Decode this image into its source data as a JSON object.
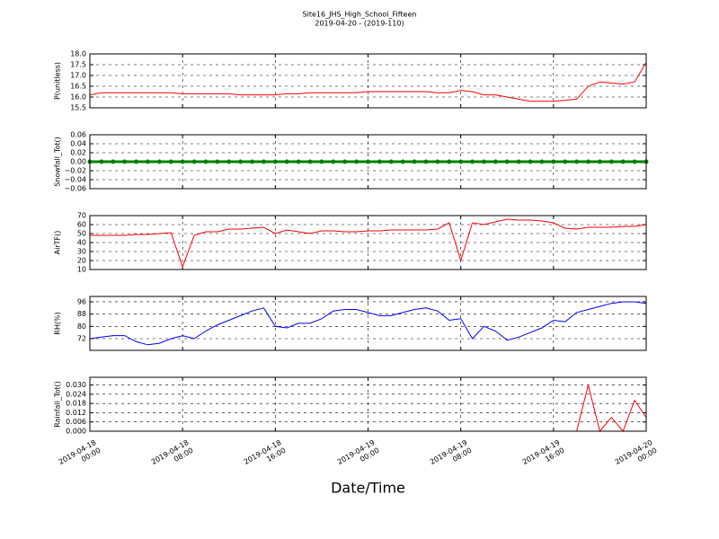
{
  "title": "Site16_JHS_High_School_Fifteen",
  "subtitle": "2019-04-20 - (2019-110)",
  "chart_data": [
    {
      "type": "line",
      "ylabel": "P(unitless)",
      "xlim": [
        "2019-04-18 00:00",
        "2019-04-20 00:00"
      ],
      "xticks": [
        "2019-04-18 00:00",
        "2019-04-18 08:00",
        "2019-04-18 16:00",
        "2019-04-19 00:00",
        "2019-04-19 08:00",
        "2019-04-19 16:00",
        "2019-04-20 00:00"
      ],
      "ylim": [
        15.5,
        18.0
      ],
      "yticks": [
        {
          "value": 15.5,
          "label": "15.5"
        },
        {
          "value": 16.0,
          "label": "16.0"
        },
        {
          "value": 16.5,
          "label": "16.5"
        },
        {
          "value": 17.0,
          "label": "17.0"
        },
        {
          "value": 17.5,
          "label": "17.5"
        },
        {
          "value": 18.0,
          "label": "18.0"
        }
      ],
      "grid": true,
      "color": "#ff0000",
      "marker": false,
      "x": [
        "2019-04-18 00:00",
        "2019-04-18 01:00",
        "2019-04-18 02:00",
        "2019-04-18 03:00",
        "2019-04-18 04:00",
        "2019-04-18 05:00",
        "2019-04-18 06:00",
        "2019-04-18 07:00",
        "2019-04-18 08:00",
        "2019-04-18 09:00",
        "2019-04-18 10:00",
        "2019-04-18 11:00",
        "2019-04-18 12:00",
        "2019-04-18 13:00",
        "2019-04-18 14:00",
        "2019-04-18 15:00",
        "2019-04-18 16:00",
        "2019-04-18 17:00",
        "2019-04-18 18:00",
        "2019-04-18 19:00",
        "2019-04-18 20:00",
        "2019-04-18 21:00",
        "2019-04-18 22:00",
        "2019-04-18 23:00",
        "2019-04-19 00:00",
        "2019-04-19 01:00",
        "2019-04-19 02:00",
        "2019-04-19 03:00",
        "2019-04-19 04:00",
        "2019-04-19 05:00",
        "2019-04-19 06:00",
        "2019-04-19 07:00",
        "2019-04-19 08:00",
        "2019-04-19 09:00",
        "2019-04-19 10:00",
        "2019-04-19 11:00",
        "2019-04-19 12:00",
        "2019-04-19 13:00",
        "2019-04-19 14:00",
        "2019-04-19 15:00",
        "2019-04-19 16:00",
        "2019-04-19 17:00",
        "2019-04-19 18:00",
        "2019-04-19 19:00",
        "2019-04-19 20:00",
        "2019-04-19 21:00",
        "2019-04-19 22:00",
        "2019-04-19 23:00",
        "2019-04-20 00:00"
      ],
      "values": [
        16.1,
        16.2,
        16.2,
        16.2,
        16.2,
        16.2,
        16.2,
        16.2,
        16.15,
        16.15,
        16.15,
        16.15,
        16.15,
        16.1,
        16.1,
        16.1,
        16.1,
        16.15,
        16.15,
        16.2,
        16.2,
        16.2,
        16.2,
        16.2,
        16.25,
        16.25,
        16.25,
        16.25,
        16.25,
        16.25,
        16.2,
        16.2,
        16.3,
        16.25,
        16.1,
        16.1,
        16.0,
        15.9,
        15.8,
        15.8,
        15.8,
        15.85,
        15.9,
        16.5,
        16.7,
        16.65,
        16.6,
        16.7,
        17.6
      ]
    },
    {
      "type": "line",
      "ylabel": "Snowfall_Tot()",
      "xlim": [
        "2019-04-18 00:00",
        "2019-04-20 00:00"
      ],
      "xticks": [
        "2019-04-18 00:00",
        "2019-04-18 08:00",
        "2019-04-18 16:00",
        "2019-04-19 00:00",
        "2019-04-19 08:00",
        "2019-04-19 16:00",
        "2019-04-20 00:00"
      ],
      "ylim": [
        -0.06,
        0.06
      ],
      "yticks": [
        {
          "value": -0.06,
          "label": "−0.06"
        },
        {
          "value": -0.04,
          "label": "−0.04"
        },
        {
          "value": -0.02,
          "label": "−0.02"
        },
        {
          "value": 0,
          "label": "0.00"
        },
        {
          "value": 0.02,
          "label": "0.02"
        },
        {
          "value": 0.04,
          "label": "0.04"
        },
        {
          "value": 0.06,
          "label": "0.06"
        }
      ],
      "grid": true,
      "color": "#008000",
      "marker": true,
      "x": [
        "2019-04-18 00:00",
        "2019-04-18 01:00",
        "2019-04-18 02:00",
        "2019-04-18 03:00",
        "2019-04-18 04:00",
        "2019-04-18 05:00",
        "2019-04-18 06:00",
        "2019-04-18 07:00",
        "2019-04-18 08:00",
        "2019-04-18 09:00",
        "2019-04-18 10:00",
        "2019-04-18 11:00",
        "2019-04-18 12:00",
        "2019-04-18 13:00",
        "2019-04-18 14:00",
        "2019-04-18 15:00",
        "2019-04-18 16:00",
        "2019-04-18 17:00",
        "2019-04-18 18:00",
        "2019-04-18 19:00",
        "2019-04-18 20:00",
        "2019-04-18 21:00",
        "2019-04-18 22:00",
        "2019-04-18 23:00",
        "2019-04-19 00:00",
        "2019-04-19 01:00",
        "2019-04-19 02:00",
        "2019-04-19 03:00",
        "2019-04-19 04:00",
        "2019-04-19 05:00",
        "2019-04-19 06:00",
        "2019-04-19 07:00",
        "2019-04-19 08:00",
        "2019-04-19 09:00",
        "2019-04-19 10:00",
        "2019-04-19 11:00",
        "2019-04-19 12:00",
        "2019-04-19 13:00",
        "2019-04-19 14:00",
        "2019-04-19 15:00",
        "2019-04-19 16:00",
        "2019-04-19 17:00",
        "2019-04-19 18:00",
        "2019-04-19 19:00",
        "2019-04-19 20:00",
        "2019-04-19 21:00",
        "2019-04-19 22:00",
        "2019-04-19 23:00",
        "2019-04-20 00:00"
      ],
      "values": [
        0,
        0,
        0,
        0,
        0,
        0,
        0,
        0,
        0,
        0,
        0,
        0,
        0,
        0,
        0,
        0,
        0,
        0,
        0,
        0,
        0,
        0,
        0,
        0,
        0,
        0,
        0,
        0,
        0,
        0,
        0,
        0,
        0,
        0,
        0,
        0,
        0,
        0,
        0,
        0,
        0,
        0,
        0,
        0,
        0,
        0,
        0,
        0,
        0
      ]
    },
    {
      "type": "line",
      "ylabel": "AirTF()",
      "xlim": [
        "2019-04-18 00:00",
        "2019-04-20 00:00"
      ],
      "xticks": [
        "2019-04-18 00:00",
        "2019-04-18 08:00",
        "2019-04-18 16:00",
        "2019-04-19 00:00",
        "2019-04-19 08:00",
        "2019-04-19 16:00",
        "2019-04-20 00:00"
      ],
      "ylim": [
        10,
        70
      ],
      "yticks": [
        10,
        20,
        30,
        40,
        50,
        60,
        70
      ],
      "grid": true,
      "color": "#ff0000",
      "marker": false,
      "x": [
        "2019-04-18 00:00",
        "2019-04-18 01:00",
        "2019-04-18 02:00",
        "2019-04-18 03:00",
        "2019-04-18 04:00",
        "2019-04-18 05:00",
        "2019-04-18 06:00",
        "2019-04-18 07:00",
        "2019-04-18 08:00",
        "2019-04-18 09:00",
        "2019-04-18 10:00",
        "2019-04-18 11:00",
        "2019-04-18 12:00",
        "2019-04-18 13:00",
        "2019-04-18 14:00",
        "2019-04-18 15:00",
        "2019-04-18 16:00",
        "2019-04-18 17:00",
        "2019-04-18 18:00",
        "2019-04-18 19:00",
        "2019-04-18 20:00",
        "2019-04-18 21:00",
        "2019-04-18 22:00",
        "2019-04-18 23:00",
        "2019-04-19 00:00",
        "2019-04-19 01:00",
        "2019-04-19 02:00",
        "2019-04-19 03:00",
        "2019-04-19 04:00",
        "2019-04-19 05:00",
        "2019-04-19 06:00",
        "2019-04-19 07:00",
        "2019-04-19 08:00",
        "2019-04-19 09:00",
        "2019-04-19 10:00",
        "2019-04-19 11:00",
        "2019-04-19 12:00",
        "2019-04-19 13:00",
        "2019-04-19 14:00",
        "2019-04-19 15:00",
        "2019-04-19 16:00",
        "2019-04-19 17:00",
        "2019-04-19 18:00",
        "2019-04-19 19:00",
        "2019-04-19 20:00",
        "2019-04-19 21:00",
        "2019-04-19 22:00",
        "2019-04-19 23:00",
        "2019-04-20 00:00"
      ],
      "values": [
        48,
        48,
        48,
        48,
        49,
        49,
        50,
        51,
        13,
        48,
        52,
        52,
        55,
        55,
        56,
        57,
        50,
        54,
        52,
        50,
        53,
        53,
        52,
        52,
        53,
        53,
        54,
        54,
        54,
        54,
        55,
        62,
        20,
        62,
        60,
        63,
        66,
        65,
        65,
        64,
        62,
        56,
        55,
        57,
        57,
        57,
        58,
        58,
        60
      ]
    },
    {
      "type": "line",
      "ylabel": "RH(%)",
      "xlim": [
        "2019-04-18 00:00",
        "2019-04-20 00:00"
      ],
      "xticks": [
        "2019-04-18 00:00",
        "2019-04-18 08:00",
        "2019-04-18 16:00",
        "2019-04-19 00:00",
        "2019-04-19 08:00",
        "2019-04-19 16:00",
        "2019-04-20 00:00"
      ],
      "ylim": [
        64.4,
        99.5
      ],
      "yticks": [
        72,
        80,
        88,
        96
      ],
      "grid": true,
      "color": "#0000ff",
      "marker": false,
      "x": [
        "2019-04-18 00:00",
        "2019-04-18 01:00",
        "2019-04-18 02:00",
        "2019-04-18 03:00",
        "2019-04-18 04:00",
        "2019-04-18 05:00",
        "2019-04-18 06:00",
        "2019-04-18 07:00",
        "2019-04-18 08:00",
        "2019-04-18 09:00",
        "2019-04-18 10:00",
        "2019-04-18 11:00",
        "2019-04-18 12:00",
        "2019-04-18 13:00",
        "2019-04-18 14:00",
        "2019-04-18 15:00",
        "2019-04-18 16:00",
        "2019-04-18 17:00",
        "2019-04-18 18:00",
        "2019-04-18 19:00",
        "2019-04-18 20:00",
        "2019-04-18 21:00",
        "2019-04-18 22:00",
        "2019-04-18 23:00",
        "2019-04-19 00:00",
        "2019-04-19 01:00",
        "2019-04-19 02:00",
        "2019-04-19 03:00",
        "2019-04-19 04:00",
        "2019-04-19 05:00",
        "2019-04-19 06:00",
        "2019-04-19 07:00",
        "2019-04-19 08:00",
        "2019-04-19 09:00",
        "2019-04-19 10:00",
        "2019-04-19 11:00",
        "2019-04-19 12:00",
        "2019-04-19 13:00",
        "2019-04-19 14:00",
        "2019-04-19 15:00",
        "2019-04-19 16:00",
        "2019-04-19 17:00",
        "2019-04-19 18:00",
        "2019-04-19 19:00",
        "2019-04-19 20:00",
        "2019-04-19 21:00",
        "2019-04-19 22:00",
        "2019-04-19 23:00",
        "2019-04-20 00:00"
      ],
      "values": [
        72,
        73,
        74,
        74,
        70,
        68,
        69,
        72,
        74,
        72,
        77,
        81,
        84,
        87,
        90,
        92,
        80,
        79,
        82,
        82,
        85,
        90,
        91,
        91,
        89,
        87,
        87,
        89,
        91,
        92,
        90,
        84,
        85,
        72,
        80,
        77,
        71,
        73,
        76,
        79,
        84,
        83,
        89,
        91,
        93,
        95,
        96,
        96,
        95
      ]
    },
    {
      "type": "line",
      "ylabel": "Rainfall_Tot()",
      "xlabel": "Date/Time",
      "xlim": [
        "2019-04-18 00:00",
        "2019-04-20 00:00"
      ],
      "xticks": [
        "2019-04-18 00:00",
        "2019-04-18 08:00",
        "2019-04-18 16:00",
        "2019-04-19 00:00",
        "2019-04-19 08:00",
        "2019-04-19 16:00",
        "2019-04-20 00:00"
      ],
      "ylim": [
        0,
        0.035
      ],
      "yticks": [
        {
          "value": 0,
          "label": "0.000"
        },
        {
          "value": 0.006,
          "label": "0.006"
        },
        {
          "value": 0.012,
          "label": "0.012"
        },
        {
          "value": 0.018,
          "label": "0.018"
        },
        {
          "value": 0.024,
          "label": "0.024"
        },
        {
          "value": 0.03,
          "label": "0.030"
        }
      ],
      "grid": true,
      "color": "#ff0000",
      "marker": false,
      "x": [
        "2019-04-18 00:00",
        "2019-04-18 01:00",
        "2019-04-18 02:00",
        "2019-04-18 03:00",
        "2019-04-18 04:00",
        "2019-04-18 05:00",
        "2019-04-18 06:00",
        "2019-04-18 07:00",
        "2019-04-18 08:00",
        "2019-04-18 09:00",
        "2019-04-18 10:00",
        "2019-04-18 11:00",
        "2019-04-18 12:00",
        "2019-04-18 13:00",
        "2019-04-18 14:00",
        "2019-04-18 15:00",
        "2019-04-18 16:00",
        "2019-04-18 17:00",
        "2019-04-18 18:00",
        "2019-04-18 19:00",
        "2019-04-18 20:00",
        "2019-04-18 21:00",
        "2019-04-18 22:00",
        "2019-04-18 23:00",
        "2019-04-19 00:00",
        "2019-04-19 01:00",
        "2019-04-19 02:00",
        "2019-04-19 03:00",
        "2019-04-19 04:00",
        "2019-04-19 05:00",
        "2019-04-19 06:00",
        "2019-04-19 07:00",
        "2019-04-19 08:00",
        "2019-04-19 09:00",
        "2019-04-19 10:00",
        "2019-04-19 11:00",
        "2019-04-19 12:00",
        "2019-04-19 13:00",
        "2019-04-19 14:00",
        "2019-04-19 15:00",
        "2019-04-19 16:00",
        "2019-04-19 17:00",
        "2019-04-19 18:00",
        "2019-04-19 19:00",
        "2019-04-19 20:00",
        "2019-04-19 21:00",
        "2019-04-19 22:00",
        "2019-04-19 23:00",
        "2019-04-20 00:00"
      ],
      "values": [
        0,
        0,
        0,
        0,
        0,
        0,
        0,
        0,
        0,
        0,
        0,
        0,
        0,
        0,
        0,
        0,
        0,
        0,
        0,
        0,
        0,
        0,
        0,
        0,
        0,
        0,
        0,
        0,
        0,
        0,
        0,
        0,
        0,
        0,
        0,
        0,
        0,
        0,
        0,
        0,
        0,
        0,
        0,
        0.03,
        0,
        0.009,
        0,
        0.02,
        0.009
      ]
    }
  ]
}
